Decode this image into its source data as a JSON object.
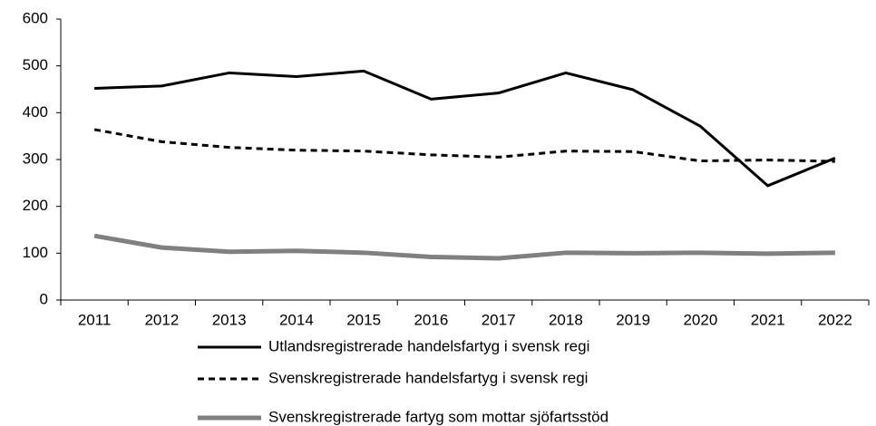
{
  "chart_data": {
    "type": "line",
    "categories": [
      "2011",
      "2012",
      "2013",
      "2014",
      "2015",
      "2016",
      "2017",
      "2018",
      "2019",
      "2020",
      "2021",
      "2022"
    ],
    "series": [
      {
        "name": "Utlandsregistrerade handelsfartyg i svensk regi",
        "color": "#000000",
        "line_style": "solid",
        "linewidth": 3,
        "values": [
          452,
          457,
          485,
          477,
          489,
          429,
          442,
          485,
          449,
          371,
          244,
          303
        ]
      },
      {
        "name": "Svenskregistrerade handelsfartyg i svensk regi",
        "color": "#000000",
        "line_style": "dashed",
        "linewidth": 3,
        "values": [
          364,
          338,
          326,
          320,
          318,
          310,
          305,
          318,
          317,
          297,
          299,
          296
        ]
      },
      {
        "name": "Svenskregistrerade fartyg som mottar sjöfartsstöd",
        "color": "#808080",
        "line_style": "solid",
        "linewidth": 5,
        "values": [
          137,
          112,
          103,
          105,
          101,
          92,
          89,
          101,
          100,
          101,
          99,
          101
        ]
      }
    ],
    "ylim": [
      0,
      600
    ],
    "yticks": [
      0,
      100,
      200,
      300,
      400,
      500,
      600
    ],
    "grid": false,
    "legend": "bottom"
  }
}
